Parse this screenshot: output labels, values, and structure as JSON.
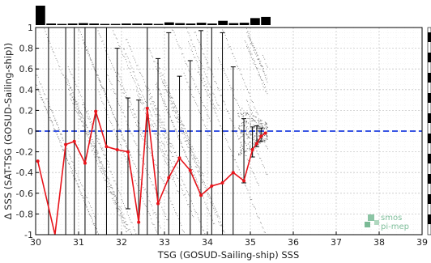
{
  "chart_data": {
    "type": "scatter",
    "xlabel": "TSG (GOSUD-Sailing-ship) SSS",
    "ylabel": "Δ SSS (SAT-TSG (GOSUD-Sailing-ship))",
    "xlim": [
      30,
      39
    ],
    "ylim": [
      -1,
      1
    ],
    "xticks": [
      "30",
      "31",
      "32",
      "33",
      "34",
      "35",
      "36",
      "37",
      "38",
      "39"
    ],
    "yticks": [
      "-1",
      "-0.8",
      "-0.6",
      "-0.4",
      "-0.2",
      "0",
      "0.2",
      "0.4",
      "0.6",
      "0.8",
      "1"
    ],
    "grid": true,
    "reference_line": {
      "y": 0,
      "color": "#1f3fe0",
      "style": "dashed"
    },
    "mean_series": {
      "color": "#e8141b",
      "x": [
        30.05,
        30.45,
        30.7,
        30.9,
        31.15,
        31.4,
        31.65,
        31.9,
        32.15,
        32.4,
        32.6,
        32.85,
        33.1,
        33.35,
        33.6,
        33.85,
        34.1,
        34.35,
        34.6,
        34.85,
        35.05,
        35.15,
        35.25,
        35.35
      ],
      "y": [
        -0.29,
        -1.0,
        -0.13,
        -0.1,
        -0.31,
        0.19,
        -0.15,
        -0.18,
        -0.2,
        -0.88,
        0.22,
        -0.7,
        -0.45,
        -0.26,
        -0.38,
        -0.62,
        -0.53,
        -0.5,
        -0.4,
        -0.48,
        -0.18,
        -0.12,
        -0.05,
        -0.02
      ]
    },
    "error_bars": {
      "color": "#000000",
      "x": [
        30.3,
        30.7,
        30.9,
        31.15,
        31.4,
        31.65,
        31.9,
        32.15,
        32.4,
        32.6,
        32.85,
        33.1,
        33.35,
        33.6,
        33.85,
        34.1,
        34.35,
        34.6,
        34.85,
        35.05,
        35.15,
        35.25
      ],
      "low": [
        -1.0,
        -1.0,
        -1.0,
        -1.0,
        -1.0,
        -1.0,
        -1.0,
        -0.75,
        -1.0,
        -1.0,
        -1.0,
        -1.0,
        -1.0,
        -1.0,
        -1.0,
        -1.0,
        -1.0,
        -1.0,
        -0.5,
        -0.25,
        -0.15,
        -0.1
      ],
      "high": [
        1.0,
        1.0,
        1.0,
        1.0,
        1.0,
        1.0,
        0.8,
        0.32,
        0.3,
        1.0,
        0.7,
        0.95,
        0.53,
        0.68,
        0.97,
        1.0,
        0.95,
        0.62,
        0.12,
        0.04,
        0.05,
        0.03
      ]
    },
    "histogram": {
      "color": "#000000",
      "x": [
        30.0,
        30.25,
        30.5,
        30.75,
        31.0,
        31.25,
        31.5,
        31.75,
        32.0,
        32.25,
        32.5,
        32.75,
        33.0,
        33.25,
        33.5,
        33.75,
        34.0,
        34.25,
        34.5,
        34.75,
        35.0,
        35.25
      ],
      "counts": [
        100,
        8,
        6,
        8,
        10,
        8,
        6,
        6,
        8,
        8,
        8,
        6,
        14,
        10,
        8,
        12,
        8,
        22,
        10,
        12,
        36,
        42
      ]
    },
    "scatter_bands": {
      "color": "#7a7a7a",
      "slope_per_unit": -1.0
    }
  },
  "logo": {
    "line1": "smos",
    "line2": "pi-mep",
    "color": "#7fbf9b"
  }
}
